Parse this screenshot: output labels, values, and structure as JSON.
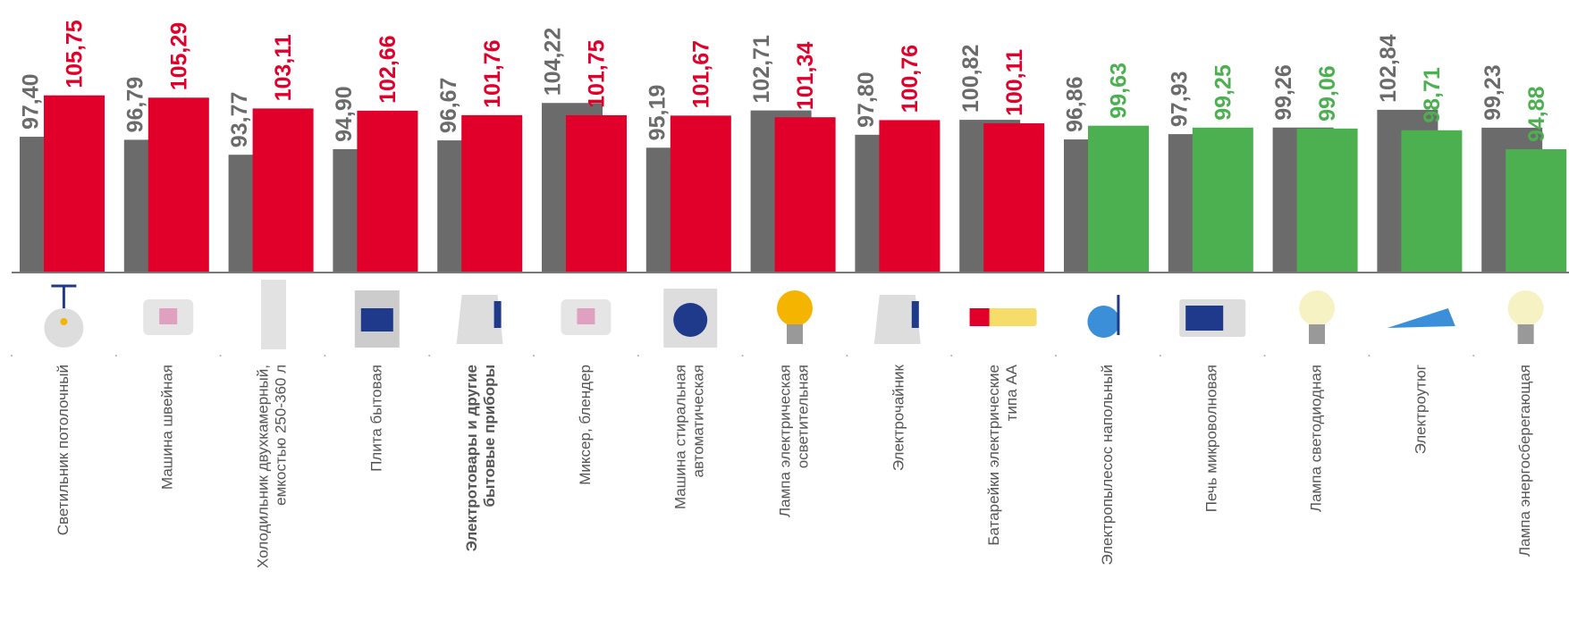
{
  "chart_data": {
    "type": "bar",
    "categories": [
      [
        "Светильник потолочный"
      ],
      [
        "Машина швейная"
      ],
      [
        "Холодильник двухкамерный,",
        "емкостью 250-360 л"
      ],
      [
        "Плита бытовая"
      ],
      [
        "Электротовары и другие",
        "бытовые приборы"
      ],
      [
        "Миксер, блендер"
      ],
      [
        "Машина стиральная",
        "автоматическая"
      ],
      [
        "Лампа электрическая",
        "осветительная"
      ],
      [
        "Электрочайник"
      ],
      [
        "Батарейки электрические",
        "типа АА"
      ],
      [
        "Электропылесос напольный"
      ],
      [
        "Печь микроволновая"
      ],
      [
        "Лампа светодиодная"
      ],
      [
        "Электроутюг"
      ],
      [
        "Лампа энергосберегающая"
      ]
    ],
    "bold_category_index": 4,
    "series": [
      {
        "color": "#6b6b6b",
        "values": [
          97.4,
          96.79,
          93.77,
          94.9,
          96.67,
          104.22,
          95.19,
          102.71,
          97.8,
          100.82,
          96.86,
          97.93,
          99.26,
          102.84,
          99.23
        ],
        "value_labels": [
          "97,40",
          "96,79",
          "93,77",
          "94,90",
          "96,67",
          "104,22",
          "95,19",
          "102,71",
          "97,80",
          "100,82",
          "96,86",
          "97,93",
          "99,26",
          "102,84",
          "99,23"
        ]
      },
      {
        "colors": [
          "#e0002a",
          "#e0002a",
          "#e0002a",
          "#e0002a",
          "#e0002a",
          "#e0002a",
          "#e0002a",
          "#e0002a",
          "#e0002a",
          "#e0002a",
          "#4caf50",
          "#4caf50",
          "#4caf50",
          "#4caf50",
          "#4caf50"
        ],
        "values": [
          105.75,
          105.29,
          103.11,
          102.66,
          101.76,
          101.75,
          101.67,
          101.34,
          100.76,
          100.11,
          99.63,
          99.25,
          99.06,
          98.71,
          94.88
        ],
        "value_labels": [
          "105,75",
          "105,29",
          "103,11",
          "102,66",
          "101,76",
          "101,75",
          "101,67",
          "101,34",
          "100,76",
          "100,11",
          "99,63",
          "99,25",
          "99,06",
          "98,71",
          "94,88"
        ]
      }
    ],
    "ylim": [
      70,
      125
    ]
  }
}
